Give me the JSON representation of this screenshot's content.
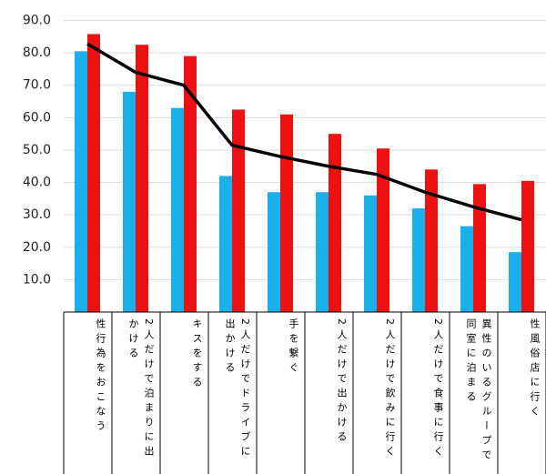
{
  "chart_data": {
    "type": "bar-line",
    "categories": [
      "性行為をおこなう",
      "2人だけで泊まりに出かける",
      "キスをする",
      "2人だけでドライブに出かける",
      "手を繋ぐ",
      "2人だけで出かける",
      "2人だけで飲みに行く",
      "2人だけで食事に行く",
      "異性のいるグループで同室に泊まる",
      "性風俗店に行く"
    ],
    "series": [
      {
        "type": "bar",
        "color": "#1ab0ea",
        "values": [
          80.5,
          68,
          63,
          42,
          37,
          37,
          36,
          32,
          26.5,
          18.5
        ]
      },
      {
        "type": "bar",
        "color": "#ee1111",
        "values": [
          85.8,
          82.5,
          79,
          62.5,
          61,
          55,
          50.5,
          44,
          39.5,
          40.5
        ]
      },
      {
        "type": "line",
        "color": "#000000",
        "values": [
          82.8,
          74,
          70,
          51.5,
          48,
          45,
          42.5,
          37,
          32.5,
          28.5
        ]
      }
    ],
    "ylim": [
      0,
      90
    ],
    "yticks": [
      {
        "value": 10,
        "label": "10.0"
      },
      {
        "value": 20,
        "label": "20.0"
      },
      {
        "value": 30,
        "label": "30.0"
      },
      {
        "value": 40,
        "label": "40.0"
      },
      {
        "value": 50,
        "label": "50.0"
      },
      {
        "value": 60,
        "label": "60.0"
      },
      {
        "value": 70,
        "label": "70.0"
      },
      {
        "value": 80,
        "label": "80.0"
      },
      {
        "value": 90,
        "label": "90.0"
      }
    ],
    "grid": true
  }
}
